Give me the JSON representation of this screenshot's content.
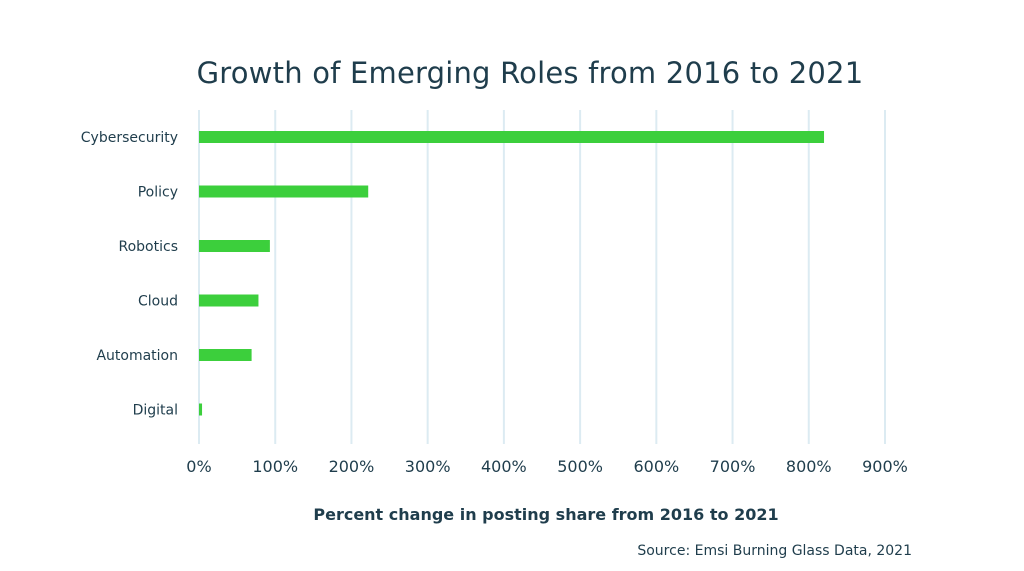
{
  "chart_data": {
    "type": "bar",
    "orientation": "horizontal",
    "title": "Growth of Emerging Roles from 2016 to 2021",
    "xlabel": "Percent change in posting share from 2016 to 2021",
    "ylabel": "",
    "categories": [
      "Cybersecurity",
      "Policy",
      "Robotics",
      "Cloud",
      "Automation",
      "Digital"
    ],
    "values": [
      820,
      222,
      93,
      78,
      69,
      4
    ],
    "xlim": [
      0,
      900
    ],
    "x_ticks": [
      {
        "value": 0,
        "label": "0%"
      },
      {
        "value": 100,
        "label": "100%"
      },
      {
        "value": 200,
        "label": "200%"
      },
      {
        "value": 300,
        "label": "300%"
      },
      {
        "value": 400,
        "label": "400%"
      },
      {
        "value": 500,
        "label": "500%"
      },
      {
        "value": 600,
        "label": "600%"
      },
      {
        "value": 700,
        "label": "700%"
      },
      {
        "value": 800,
        "label": "800%"
      },
      {
        "value": 900,
        "label": "900%"
      }
    ],
    "grid": true,
    "legend": "none",
    "colors": {
      "bar": "#3ccf3c",
      "grid": "#dcebf2",
      "text": "#1f3d4c"
    }
  },
  "source": "Source: Emsi Burning Glass Data, 2021"
}
